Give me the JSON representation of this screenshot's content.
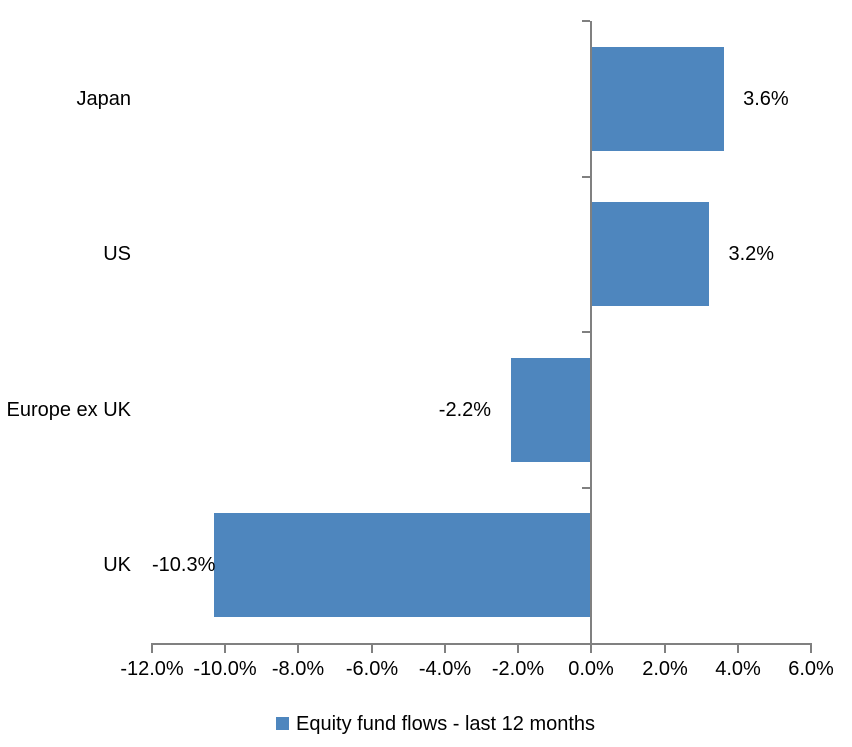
{
  "chart_data": {
    "type": "bar",
    "orientation": "horizontal",
    "title": "",
    "categories": [
      "Japan",
      "US",
      "Europe ex UK",
      "UK"
    ],
    "series": [
      {
        "name": "Equity fund flows - last 12 months",
        "values": [
          3.6,
          3.2,
          -2.2,
          -10.3
        ],
        "value_labels": [
          "3.6%",
          "3.2%",
          "-2.2%",
          "-10.3%"
        ]
      }
    ],
    "xlabel": "",
    "ylabel": "",
    "xlim": [
      -12,
      6
    ],
    "x_tick_values": [
      -12,
      -10,
      -8,
      -6,
      -4,
      -2,
      0,
      2,
      4,
      6
    ],
    "x_tick_labels": [
      "-12.0%",
      "-10.0%",
      "-8.0%",
      "-6.0%",
      "-4.0%",
      "-2.0%",
      "0.0%",
      "2.0%",
      "4.0%",
      "6.0%"
    ],
    "grid": false,
    "legend": {
      "position": "bottom",
      "label": "Equity fund flows - last 12 months"
    },
    "colors": {
      "bar": "#4E86BE",
      "axis": "#808080",
      "text": "#000000",
      "background": "#FFFFFF"
    }
  }
}
